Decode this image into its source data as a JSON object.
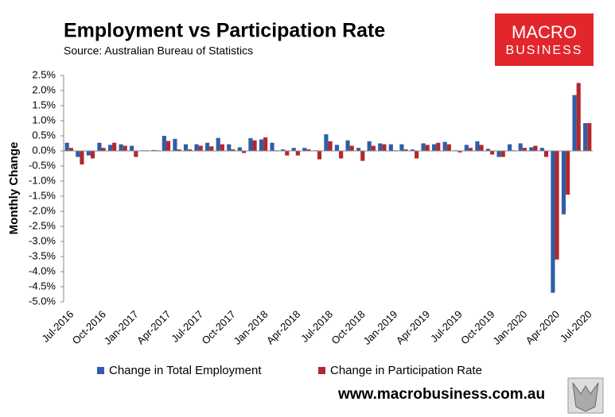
{
  "chart_data": {
    "type": "bar",
    "title": "Employment vs Participation Rate",
    "subtitle": "Source: Australian Bureau of Statistics",
    "y_label": "Monthly Change",
    "categories": [
      "Jul-2016",
      null,
      null,
      "Oct-2016",
      null,
      null,
      "Jan-2017",
      null,
      null,
      "Apr-2017",
      null,
      null,
      "Jul-2017",
      null,
      null,
      "Oct-2017",
      null,
      null,
      "Jan-2018",
      null,
      null,
      "Apr-2018",
      null,
      null,
      "Jul-2018",
      null,
      null,
      "Oct-2018",
      null,
      null,
      "Jan-2019",
      null,
      null,
      "Apr-2019",
      null,
      null,
      "Jul-2019",
      null,
      null,
      "Oct-2019",
      null,
      null,
      "Jan-2020",
      null,
      null,
      "Apr-2020",
      null,
      null,
      "Jul-2020"
    ],
    "series": [
      {
        "name": "Change in Total Employment",
        "color": "#2f5ea6",
        "values": [
          0.27,
          -0.2,
          -0.15,
          0.27,
          0.2,
          0.22,
          0.17,
          0.02,
          0.03,
          0.5,
          0.4,
          0.22,
          0.22,
          0.27,
          0.43,
          0.22,
          0.12,
          0.42,
          0.38,
          0.27,
          0.05,
          0.1,
          0.1,
          0.02,
          0.55,
          0.2,
          0.35,
          0.1,
          0.32,
          0.25,
          0.22,
          0.22,
          0.05,
          0.25,
          0.22,
          0.3,
          0.02,
          0.2,
          0.32,
          0.07,
          -0.2,
          0.22,
          0.25,
          0.12,
          0.1,
          -4.7,
          -2.1,
          1.85,
          0.92
        ]
      },
      {
        "name": "Change in Participation Rate",
        "color": "#b3282d",
        "values": [
          0.1,
          -0.45,
          -0.25,
          0.1,
          0.27,
          0.17,
          -0.2,
          0.02,
          0.02,
          0.33,
          0.05,
          0.05,
          0.17,
          0.15,
          0.22,
          0.05,
          -0.07,
          0.35,
          0.45,
          0.02,
          -0.15,
          -0.15,
          0.05,
          -0.28,
          0.32,
          -0.25,
          0.17,
          -0.33,
          0.17,
          0.22,
          0.02,
          0.05,
          -0.25,
          0.2,
          0.27,
          0.22,
          -0.05,
          0.1,
          0.2,
          -0.12,
          -0.2,
          0.02,
          0.1,
          0.17,
          -0.2,
          -3.6,
          -1.45,
          2.25,
          0.92
        ]
      }
    ],
    "ylim": [
      -5.0,
      2.5
    ],
    "yticks": [
      {
        "value": 2.5,
        "label": "2.5%"
      },
      {
        "value": 2.0,
        "label": "2.0%"
      },
      {
        "value": 1.5,
        "label": "1.5%"
      },
      {
        "value": 1.0,
        "label": "1.0%"
      },
      {
        "value": 0.5,
        "label": "0.5%"
      },
      {
        "value": 0.0,
        "label": "0.0%"
      },
      {
        "value": -0.5,
        "label": "-0.5%"
      },
      {
        "value": -1.0,
        "label": "-1.0%"
      },
      {
        "value": -1.5,
        "label": "-1.5%"
      },
      {
        "value": -2.0,
        "label": "-2.0%"
      },
      {
        "value": -2.5,
        "label": "-2.5%"
      },
      {
        "value": -3.0,
        "label": "-3.0%"
      },
      {
        "value": -3.5,
        "label": "-3.5%"
      },
      {
        "value": -4.0,
        "label": "-4.0%"
      },
      {
        "value": -4.5,
        "label": "-4.5%"
      },
      {
        "value": -5.0,
        "label": "-5.0%"
      }
    ],
    "grid": false,
    "legend": "bottom"
  },
  "logo": {
    "line1": "MACRO",
    "line2": "BUSINESS"
  },
  "footer": "www.macrobusiness.com.au"
}
